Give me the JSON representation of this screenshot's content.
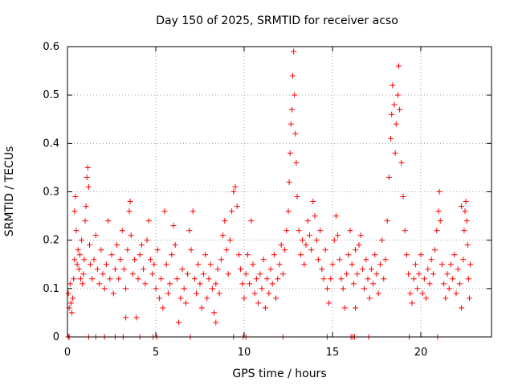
{
  "chart_data": {
    "type": "scatter",
    "title": "Day 150 of 2025, SRMTID for receiver acso",
    "xlabel": "GPS time / hours",
    "ylabel": "SRMTID / TECUs",
    "xlim": [
      0,
      24
    ],
    "ylim": [
      0,
      0.6
    ],
    "xticks": [
      0,
      5,
      10,
      15,
      20
    ],
    "xtick_labels": [
      "0",
      "5",
      "10",
      "15",
      "20"
    ],
    "yticks": [
      0,
      0.1,
      0.2,
      0.3,
      0.4,
      0.5,
      0.6
    ],
    "ytick_labels": [
      "0",
      "0.1",
      "0.2",
      "0.3",
      "0.4",
      "0.5",
      "0.6"
    ],
    "grid": true,
    "marker": "+",
    "color": "#ff0000",
    "series": [
      {
        "name": "SRMTID",
        "points": [
          [
            0.05,
            0.09
          ],
          [
            0.1,
            0.06
          ],
          [
            0.15,
            0.11
          ],
          [
            0.2,
            0.07
          ],
          [
            0.25,
            0.05
          ],
          [
            0.3,
            0.08
          ],
          [
            0.35,
            0.12
          ],
          [
            0.4,
            0.16
          ],
          [
            0.4,
            0.26
          ],
          [
            0.45,
            0.29
          ],
          [
            0.5,
            0.22
          ],
          [
            0.55,
            0.15
          ],
          [
            0.6,
            0.18
          ],
          [
            0.65,
            0.14
          ],
          [
            0.7,
            0.17
          ],
          [
            0.75,
            0.12
          ],
          [
            0.8,
            0.2
          ],
          [
            0.85,
            0.11
          ],
          [
            0.9,
            0.13
          ],
          [
            0.95,
            0.16
          ],
          [
            1.0,
            0.24
          ],
          [
            1.05,
            0.27
          ],
          [
            1.1,
            0.33
          ],
          [
            1.15,
            0.35
          ],
          [
            1.2,
            0.31
          ],
          [
            1.25,
            0.19
          ],
          [
            1.3,
            0.15
          ],
          [
            1.4,
            0.12
          ],
          [
            1.5,
            0.16
          ],
          [
            1.6,
            0.21
          ],
          [
            1.7,
            0.14
          ],
          [
            1.8,
            0.11
          ],
          [
            1.9,
            0.18
          ],
          [
            2.0,
            0.13
          ],
          [
            2.1,
            0.1
          ],
          [
            2.2,
            0.15
          ],
          [
            2.3,
            0.24
          ],
          [
            2.4,
            0.12
          ],
          [
            2.5,
            0.17
          ],
          [
            2.6,
            0.09
          ],
          [
            2.7,
            0.14
          ],
          [
            2.8,
            0.19
          ],
          [
            2.9,
            0.12
          ],
          [
            3.0,
            0.16
          ],
          [
            3.1,
            0.22
          ],
          [
            3.2,
            0.14
          ],
          [
            3.3,
            0.1
          ],
          [
            3.4,
            0.18
          ],
          [
            3.5,
            0.26
          ],
          [
            3.55,
            0.28
          ],
          [
            3.6,
            0.21
          ],
          [
            3.7,
            0.13
          ],
          [
            3.8,
            0.16
          ],
          [
            3.9,
            0.04
          ],
          [
            4.0,
            0.12
          ],
          [
            4.1,
            0.17
          ],
          [
            4.2,
            0.19
          ],
          [
            4.3,
            0.14
          ],
          [
            4.4,
            0.11
          ],
          [
            4.5,
            0.2
          ],
          [
            4.6,
            0.24
          ],
          [
            4.7,
            0.16
          ],
          [
            4.8,
            0.13
          ],
          [
            4.9,
            0.15
          ],
          [
            5.0,
            0.1
          ],
          [
            5.1,
            0.18
          ],
          [
            5.2,
            0.08
          ],
          [
            5.3,
            0.12
          ],
          [
            5.4,
            0.06
          ],
          [
            5.5,
            0.26
          ],
          [
            5.6,
            0.15
          ],
          [
            5.7,
            0.09
          ],
          [
            5.8,
            0.11
          ],
          [
            5.9,
            0.17
          ],
          [
            6.0,
            0.23
          ],
          [
            6.1,
            0.19
          ],
          [
            6.2,
            0.12
          ],
          [
            6.3,
            0.03
          ],
          [
            6.4,
            0.08
          ],
          [
            6.5,
            0.14
          ],
          [
            6.6,
            0.1
          ],
          [
            6.7,
            0.07
          ],
          [
            6.8,
            0.13
          ],
          [
            6.9,
            0.22
          ],
          [
            7.0,
            0.18
          ],
          [
            7.1,
            0.26
          ],
          [
            7.2,
            0.12
          ],
          [
            7.3,
            0.09
          ],
          [
            7.4,
            0.15
          ],
          [
            7.5,
            0.11
          ],
          [
            7.6,
            0.06
          ],
          [
            7.7,
            0.13
          ],
          [
            7.8,
            0.17
          ],
          [
            7.9,
            0.08
          ],
          [
            8.0,
            0.12
          ],
          [
            8.1,
            0.15
          ],
          [
            8.2,
            0.1
          ],
          [
            8.3,
            0.05
          ],
          [
            8.4,
            0.11
          ],
          [
            8.5,
            0.14
          ],
          [
            8.6,
            0.09
          ],
          [
            8.7,
            0.16
          ],
          [
            8.8,
            0.21
          ],
          [
            8.9,
            0.24
          ],
          [
            9.0,
            0.18
          ],
          [
            9.1,
            0.13
          ],
          [
            9.2,
            0.2
          ],
          [
            9.3,
            0.26
          ],
          [
            9.4,
            0.3
          ],
          [
            9.5,
            0.31
          ],
          [
            9.6,
            0.27
          ],
          [
            9.7,
            0.17
          ],
          [
            9.8,
            0.14
          ],
          [
            9.9,
            0.11
          ],
          [
            10.0,
            0.08
          ],
          [
            10.1,
            0.13
          ],
          [
            10.2,
            0.17
          ],
          [
            10.3,
            0.11
          ],
          [
            10.4,
            0.24
          ],
          [
            10.5,
            0.15
          ],
          [
            10.6,
            0.09
          ],
          [
            10.7,
            0.12
          ],
          [
            10.8,
            0.07
          ],
          [
            10.9,
            0.13
          ],
          [
            11.0,
            0.1
          ],
          [
            11.1,
            0.16
          ],
          [
            11.2,
            0.06
          ],
          [
            11.3,
            0.12
          ],
          [
            11.4,
            0.09
          ],
          [
            11.5,
            0.14
          ],
          [
            11.6,
            0.11
          ],
          [
            11.7,
            0.17
          ],
          [
            11.8,
            0.08
          ],
          [
            11.9,
            0.12
          ],
          [
            12.0,
            0.15
          ],
          [
            12.1,
            0.19
          ],
          [
            12.2,
            0.13
          ],
          [
            12.3,
            0.18
          ],
          [
            12.4,
            0.22
          ],
          [
            12.5,
            0.26
          ],
          [
            12.55,
            0.32
          ],
          [
            12.6,
            0.38
          ],
          [
            12.65,
            0.44
          ],
          [
            12.7,
            0.47
          ],
          [
            12.75,
            0.54
          ],
          [
            12.8,
            0.59
          ],
          [
            12.85,
            0.5
          ],
          [
            12.9,
            0.42
          ],
          [
            12.95,
            0.36
          ],
          [
            13.0,
            0.29
          ],
          [
            13.1,
            0.22
          ],
          [
            13.2,
            0.17
          ],
          [
            13.3,
            0.2
          ],
          [
            13.4,
            0.15
          ],
          [
            13.5,
            0.19
          ],
          [
            13.6,
            0.24
          ],
          [
            13.7,
            0.21
          ],
          [
            13.8,
            0.18
          ],
          [
            13.9,
            0.28
          ],
          [
            14.0,
            0.25
          ],
          [
            14.1,
            0.2
          ],
          [
            14.2,
            0.16
          ],
          [
            14.3,
            0.22
          ],
          [
            14.4,
            0.14
          ],
          [
            14.5,
            0.12
          ],
          [
            14.6,
            0.18
          ],
          [
            14.7,
            0.1
          ],
          [
            14.8,
            0.07
          ],
          [
            14.9,
            0.12
          ],
          [
            15.0,
            0.15
          ],
          [
            15.1,
            0.2
          ],
          [
            15.2,
            0.25
          ],
          [
            15.3,
            0.21
          ],
          [
            15.4,
            0.16
          ],
          [
            15.5,
            0.12
          ],
          [
            15.6,
            0.1
          ],
          [
            15.7,
            0.06
          ],
          [
            15.8,
            0.13
          ],
          [
            15.9,
            0.17
          ],
          [
            16.0,
            0.22
          ],
          [
            16.1,
            0.15
          ],
          [
            16.2,
            0.11
          ],
          [
            16.3,
            0.18
          ],
          [
            16.4,
            0.13
          ],
          [
            16.5,
            0.19
          ],
          [
            16.6,
            0.21
          ],
          [
            16.7,
            0.14
          ],
          [
            16.8,
            0.1
          ],
          [
            16.9,
            0.16
          ],
          [
            17.0,
            0.12
          ],
          [
            17.1,
            0.08
          ],
          [
            17.2,
            0.14
          ],
          [
            17.3,
            0.11
          ],
          [
            17.4,
            0.17
          ],
          [
            17.5,
            0.13
          ],
          [
            17.6,
            0.09
          ],
          [
            17.7,
            0.15
          ],
          [
            17.8,
            0.2
          ],
          [
            17.9,
            0.12
          ],
          [
            18.0,
            0.16
          ],
          [
            18.1,
            0.24
          ],
          [
            18.2,
            0.33
          ],
          [
            18.3,
            0.41
          ],
          [
            18.35,
            0.46
          ],
          [
            18.4,
            0.52
          ],
          [
            18.5,
            0.48
          ],
          [
            18.55,
            0.38
          ],
          [
            18.6,
            0.44
          ],
          [
            18.7,
            0.5
          ],
          [
            18.75,
            0.56
          ],
          [
            18.8,
            0.47
          ],
          [
            18.9,
            0.36
          ],
          [
            19.0,
            0.29
          ],
          [
            19.1,
            0.22
          ],
          [
            19.2,
            0.17
          ],
          [
            19.3,
            0.13
          ],
          [
            19.4,
            0.09
          ],
          [
            19.5,
            0.07
          ],
          [
            19.6,
            0.12
          ],
          [
            19.7,
            0.15
          ],
          [
            19.8,
            0.1
          ],
          [
            19.9,
            0.13
          ],
          [
            20.0,
            0.17
          ],
          [
            20.1,
            0.09
          ],
          [
            20.2,
            0.12
          ],
          [
            20.3,
            0.08
          ],
          [
            20.4,
            0.14
          ],
          [
            20.5,
            0.11
          ],
          [
            20.6,
            0.16
          ],
          [
            20.7,
            0.13
          ],
          [
            20.8,
            0.18
          ],
          [
            20.9,
            0.22
          ],
          [
            21.0,
            0.26
          ],
          [
            21.05,
            0.3
          ],
          [
            21.1,
            0.24
          ],
          [
            21.2,
            0.15
          ],
          [
            21.3,
            0.11
          ],
          [
            21.4,
            0.08
          ],
          [
            21.5,
            0.13
          ],
          [
            21.6,
            0.1
          ],
          [
            21.7,
            0.15
          ],
          [
            21.8,
            0.12
          ],
          [
            21.9,
            0.17
          ],
          [
            22.0,
            0.09
          ],
          [
            22.1,
            0.14
          ],
          [
            22.2,
            0.11
          ],
          [
            22.3,
            0.06
          ],
          [
            22.4,
            0.16
          ],
          [
            22.45,
            0.22
          ],
          [
            22.5,
            0.26
          ],
          [
            22.55,
            0.28
          ],
          [
            22.6,
            0.24
          ],
          [
            22.65,
            0.19
          ],
          [
            22.7,
            0.12
          ],
          [
            22.75,
            0.08
          ],
          [
            22.8,
            0.15
          ],
          [
            22.3,
            0.27
          ],
          [
            16.3,
            0.06
          ],
          [
            8.4,
            0.03
          ],
          [
            3.3,
            0.04
          ],
          [
            0.05,
            0
          ],
          [
            0.1,
            0
          ],
          [
            1.2,
            0
          ],
          [
            1.6,
            0
          ],
          [
            2.1,
            0
          ],
          [
            2.7,
            0
          ],
          [
            3.15,
            0
          ],
          [
            4.1,
            0
          ],
          [
            4.85,
            0
          ],
          [
            5.05,
            0
          ],
          [
            6.95,
            0
          ],
          [
            9.4,
            0
          ],
          [
            9.95,
            0
          ],
          [
            10.1,
            0
          ],
          [
            12.2,
            0
          ],
          [
            14.7,
            0
          ],
          [
            16.05,
            0
          ],
          [
            16.15,
            0
          ],
          [
            16.25,
            0
          ],
          [
            17.05,
            0
          ],
          [
            19.35,
            0
          ],
          [
            20.95,
            0
          ]
        ]
      }
    ]
  }
}
